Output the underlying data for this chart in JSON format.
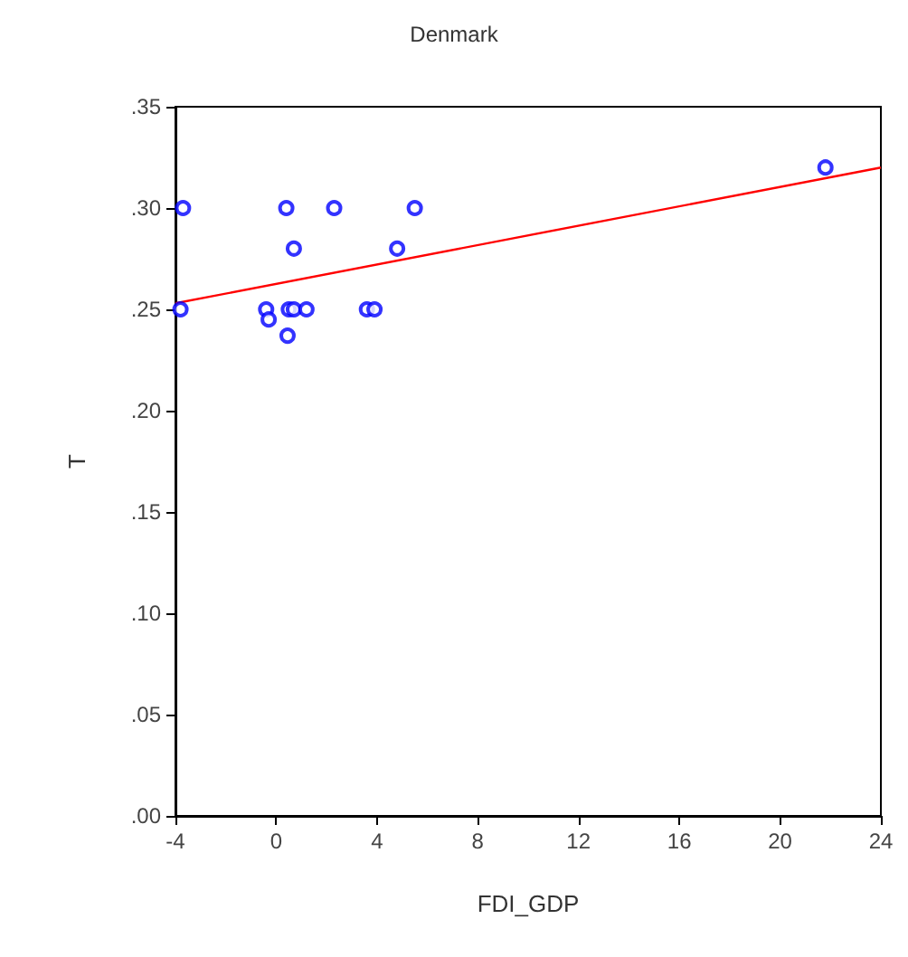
{
  "chart_data": {
    "type": "scatter",
    "title": "Denmark",
    "xlabel": "FDI_GDP",
    "ylabel": "T",
    "xlim": [
      -4,
      24
    ],
    "xticks": [
      -4,
      0,
      4,
      8,
      12,
      16,
      20,
      24
    ],
    "ylim": [
      0,
      0.35
    ],
    "yticks": [
      {
        "value": 0,
        "label": ".00"
      },
      {
        "value": 0.05,
        "label": ".05"
      },
      {
        "value": 0.1,
        "label": ".10"
      },
      {
        "value": 0.15,
        "label": ".15"
      },
      {
        "value": 0.2,
        "label": ".20"
      },
      {
        "value": 0.25,
        "label": ".25"
      },
      {
        "value": 0.3,
        "label": ".30"
      },
      {
        "value": 0.35,
        "label": ".35"
      }
    ],
    "grid": false,
    "marker": "circle",
    "series": [
      {
        "color": "#0000ff",
        "x": [
          -3.7,
          -3.8,
          0.4,
          2.3,
          5.5,
          0.7,
          4.8,
          -0.4,
          -0.3,
          0.45,
          0.5,
          0.7,
          1.2,
          3.6,
          3.9,
          21.8
        ],
        "values": [
          0.3,
          0.25,
          0.3,
          0.3,
          0.3,
          0.28,
          0.28,
          0.25,
          0.245,
          0.237,
          0.25,
          0.25,
          0.25,
          0.25,
          0.25,
          0.32
        ]
      },
      {
        "type": "line",
        "color": "#ff0000",
        "marker": "none",
        "x": [
          -4,
          24
        ],
        "values": [
          0.253,
          0.32
        ]
      }
    ]
  }
}
